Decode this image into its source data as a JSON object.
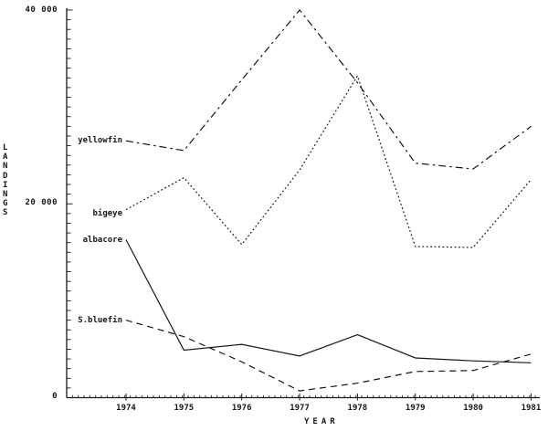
{
  "figure": {
    "background_color": "#ffffff",
    "ink_color": "#161616"
  },
  "chart_data": {
    "type": "line",
    "title": "",
    "xlabel": "YEAR",
    "ylabel": "LANDINGS",
    "categories": [
      "1974",
      "1975",
      "1976",
      "1977",
      "1978",
      "1979",
      "1980",
      "1981"
    ],
    "ylim": [
      0,
      40000
    ],
    "ytick_values": [
      0,
      20000,
      40000
    ],
    "ytick_labels": [
      "0",
      "20 000",
      "40 000"
    ],
    "y_minor_tick_step": 1000,
    "x_minor_ticks_per_year": 10,
    "grid": false,
    "legend_position": "inline-left-of-lines",
    "series": [
      {
        "name": "yellowfin",
        "line_style": "dash-dot",
        "values": [
          26500,
          25500,
          32800,
          40000,
          32500,
          24200,
          23600,
          28000
        ]
      },
      {
        "name": "bigeye",
        "line_style": "dotted",
        "values": [
          19400,
          22700,
          15800,
          23500,
          33200,
          15600,
          15500,
          22500
        ]
      },
      {
        "name": "albacore",
        "line_style": "solid",
        "values": [
          16300,
          4900,
          5500,
          4300,
          6500,
          4100,
          3800,
          3600
        ]
      },
      {
        "name": "S.bluefin",
        "line_style": "dashed",
        "values": [
          8000,
          6300,
          3700,
          700,
          1500,
          2700,
          2800,
          4500
        ]
      }
    ]
  }
}
